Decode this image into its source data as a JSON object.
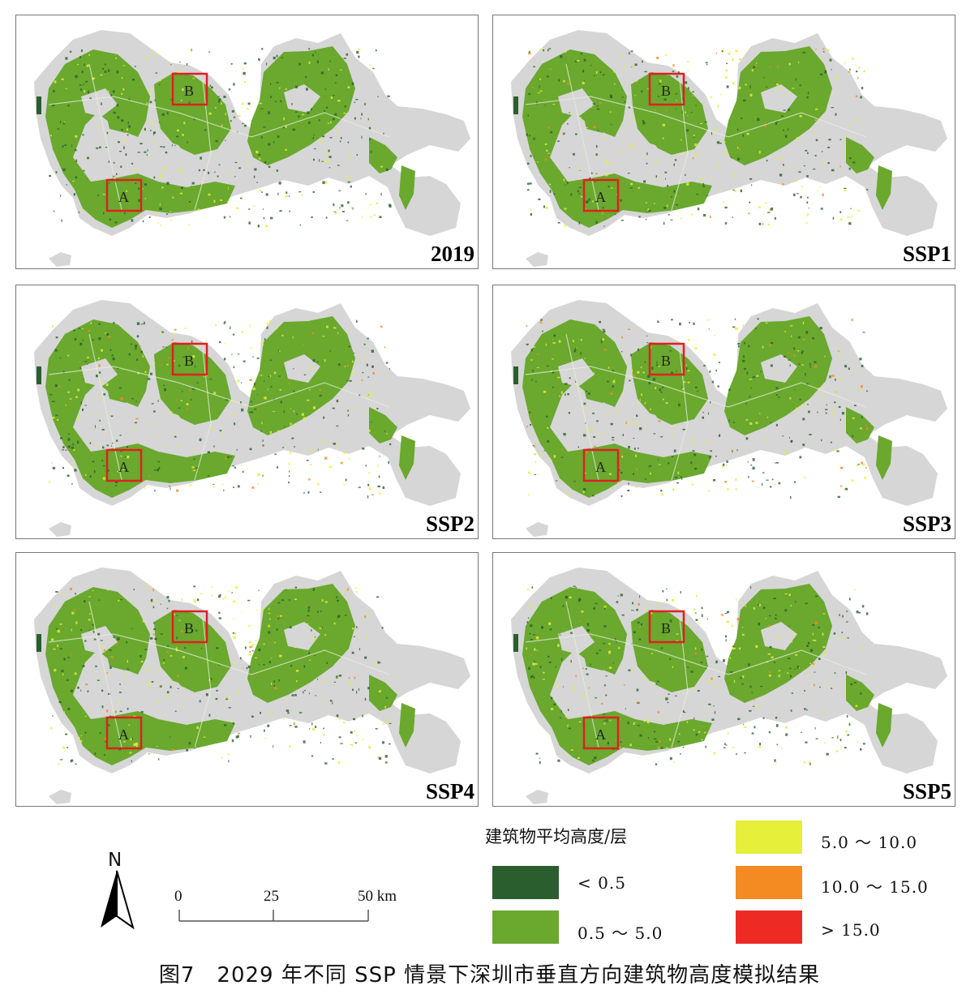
{
  "panels": [
    {
      "label": "2019"
    },
    {
      "label": "SSP1"
    },
    {
      "label": "SSP2"
    },
    {
      "label": "SSP3"
    },
    {
      "label": "SSP4"
    },
    {
      "label": "SSP5"
    }
  ],
  "region_labels": {
    "a": "A",
    "b": "B"
  },
  "legend": {
    "title": "建筑物平均高度/层",
    "items": [
      {
        "label": "< 0.5",
        "color": "#2b5e2e"
      },
      {
        "label": "0.5 ～ 5.0",
        "color": "#6aa82e"
      },
      {
        "label": "5.0 ～ 10.0",
        "color": "#e6ef3a"
      },
      {
        "label": "10.0 ～ 15.0",
        "color": "#f48a22"
      },
      {
        "label": "> 15.0",
        "color": "#ee2a24"
      }
    ]
  },
  "colors": {
    "background_land": "#d6d6d6",
    "box": "#e02020"
  },
  "scale": {
    "t0": "0",
    "t1": "25",
    "t2": "50 km"
  },
  "north": "N",
  "caption": "图7　2029 年不同 SSP 情景下深圳市垂直方向建筑物高度模拟结果"
}
